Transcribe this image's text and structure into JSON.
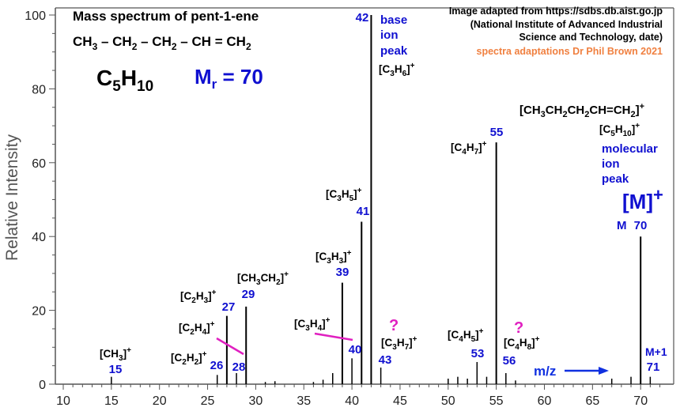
{
  "chart_data": {
    "type": "bar",
    "title": "Mass spectrum of pent-1-ene",
    "formula_line": [
      "CH",
      "3",
      " – CH",
      "2",
      " – CH",
      "2",
      " – CH = CH",
      "2"
    ],
    "molecular_formula": {
      "c": "C",
      "c_sub": "5",
      "h": "H",
      "h_sub": "10"
    },
    "mr_label": {
      "m": "M",
      "r": "r",
      "rest": " = 70"
    },
    "source_lines": [
      "Image adapted from https://sdbs.db.aist.go.jp",
      "(National Institute of Advanced Industrial",
      "Science and Technology, date)"
    ],
    "credit": "spectra adaptations Dr Phil Brown 2021",
    "ylabel": "Relative Intensity",
    "xlabel": "",
    "xlim": [
      10,
      72
    ],
    "ylim": [
      0,
      100
    ],
    "x_ticks": [
      10,
      15,
      20,
      25,
      30,
      35,
      40,
      45,
      50,
      55,
      60,
      65,
      70
    ],
    "y_ticks": [
      0,
      20,
      40,
      60,
      80,
      100
    ],
    "peaks": [
      {
        "mz": 15,
        "intensity": 2
      },
      {
        "mz": 26,
        "intensity": 2.5
      },
      {
        "mz": 27,
        "intensity": 18.5
      },
      {
        "mz": 28,
        "intensity": 3
      },
      {
        "mz": 29,
        "intensity": 21
      },
      {
        "mz": 31,
        "intensity": 0.6
      },
      {
        "mz": 32,
        "intensity": 0.8
      },
      {
        "mz": 36,
        "intensity": 0.6
      },
      {
        "mz": 37,
        "intensity": 1.2
      },
      {
        "mz": 38,
        "intensity": 3
      },
      {
        "mz": 39,
        "intensity": 27.5
      },
      {
        "mz": 40,
        "intensity": 7
      },
      {
        "mz": 41,
        "intensity": 44
      },
      {
        "mz": 42,
        "intensity": 100
      },
      {
        "mz": 43,
        "intensity": 4.5
      },
      {
        "mz": 50,
        "intensity": 1.5
      },
      {
        "mz": 51,
        "intensity": 2
      },
      {
        "mz": 52,
        "intensity": 1.5
      },
      {
        "mz": 53,
        "intensity": 6
      },
      {
        "mz": 54,
        "intensity": 2
      },
      {
        "mz": 55,
        "intensity": 65.5
      },
      {
        "mz": 56,
        "intensity": 3
      },
      {
        "mz": 57,
        "intensity": 1
      },
      {
        "mz": 67,
        "intensity": 1.5
      },
      {
        "mz": 69,
        "intensity": 2
      },
      {
        "mz": 70,
        "intensity": 40
      },
      {
        "mz": 71,
        "intensity": 2
      }
    ],
    "annotations": {
      "base_peak": [
        "base",
        "ion",
        "peak"
      ],
      "molecular_ion": [
        "molecular",
        "ion",
        "peak"
      ],
      "m_plus": "[M]",
      "m_label": "M",
      "m_plus_one": "M+1",
      "mz_arrow": "m/z",
      "question": "?"
    },
    "fragments": [
      {
        "mz": 15,
        "main": "[CH",
        "sub": "3",
        "end": "]",
        "charge": "+"
      },
      {
        "mz": 26,
        "main": "[C",
        "sub": "2",
        "mid": "H",
        "sub2": "2",
        "end": "]",
        "charge": "+"
      },
      {
        "mz": 27,
        "main": "[C",
        "sub": "2",
        "mid": "H",
        "sub2": "3",
        "end": "]",
        "charge": "+"
      },
      {
        "mz": 28,
        "main": "[C",
        "sub": "2",
        "mid": "H",
        "sub2": "4",
        "end": "]",
        "charge": "+"
      },
      {
        "mz": 29,
        "main": "[CH",
        "sub": "3",
        "mid": "CH",
        "sub2": "2",
        "end": "]",
        "charge": "+"
      },
      {
        "mz": 39,
        "main": "[C",
        "sub": "3",
        "mid": "H",
        "sub2": "3",
        "end": "]",
        "charge": "+"
      },
      {
        "mz": 40,
        "main": "[C",
        "sub": "3",
        "mid": "H",
        "sub2": "4",
        "end": "]",
        "charge": "+"
      },
      {
        "mz": 41,
        "main": "[C",
        "sub": "3",
        "mid": "H",
        "sub2": "5",
        "end": "]",
        "charge": "+"
      },
      {
        "mz": 42,
        "main": "[C",
        "sub": "3",
        "mid": "H",
        "sub2": "6",
        "end": "]",
        "charge": "+"
      },
      {
        "mz": 43,
        "main": "[C",
        "sub": "3",
        "mid": "H",
        "sub2": "7",
        "end": "]",
        "charge": "+"
      },
      {
        "mz": 53,
        "main": "[C",
        "sub": "4",
        "mid": "H",
        "sub2": "5",
        "end": "]",
        "charge": "+"
      },
      {
        "mz": 55,
        "main": "[C",
        "sub": "4",
        "mid": "H",
        "sub2": "7",
        "end": "]",
        "charge": "+"
      },
      {
        "mz": 56,
        "main": "[C",
        "sub": "4",
        "mid": "H",
        "sub2": "8",
        "end": "]",
        "charge": "+"
      },
      {
        "mz": 70,
        "main": "[C",
        "sub": "5",
        "mid": "H",
        "sub2": "10",
        "end": "]",
        "charge": "+"
      }
    ],
    "molecular_ion_structure": {
      "parts": [
        "[CH",
        "3",
        "CH",
        "2",
        "CH",
        "2",
        "CH=CH",
        "2",
        "]"
      ],
      "charge": "+"
    },
    "peak_labels": [
      15,
      26,
      27,
      28,
      29,
      39,
      40,
      41,
      42,
      43,
      53,
      55,
      56,
      70,
      71
    ],
    "colors": {
      "peak_label": "#1010d0",
      "text": "#000000",
      "credit": "#f08040",
      "highlight": "#e020c0",
      "arrow": "#1030e0",
      "axis": "#555555"
    }
  }
}
